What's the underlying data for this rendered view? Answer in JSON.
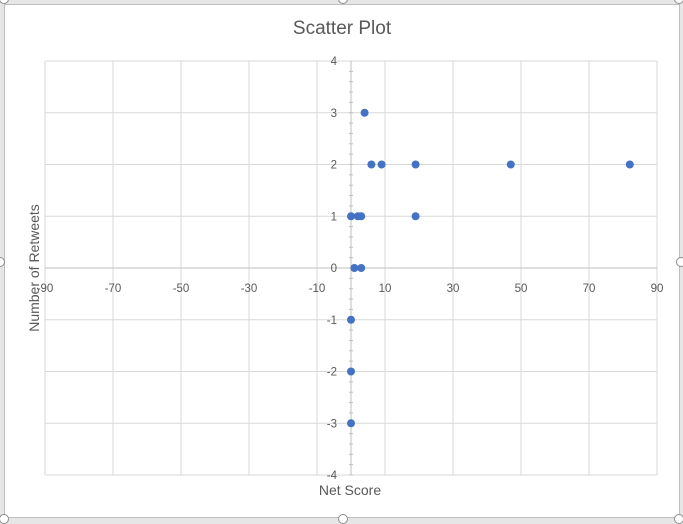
{
  "chart_data": {
    "type": "scatter",
    "title": "Scatter Plot",
    "xlabel": "Net Score",
    "ylabel": "Number of Retweets",
    "xlim": [
      -90,
      90
    ],
    "ylim": [
      -4,
      4
    ],
    "x_ticks": [
      "-90",
      "-70",
      "-50",
      "-30",
      "-10",
      "10",
      "30",
      "50",
      "70",
      "90"
    ],
    "y_ticks": [
      "-4",
      "-3",
      "-2",
      "-1",
      "0",
      "1",
      "2",
      "3",
      "4"
    ],
    "grid": true,
    "legend": "none",
    "marker_color": "#4472C4",
    "points": [
      {
        "x": 4,
        "y": 3
      },
      {
        "x": 6,
        "y": 2
      },
      {
        "x": 9,
        "y": 2
      },
      {
        "x": 19,
        "y": 2
      },
      {
        "x": 47,
        "y": 2
      },
      {
        "x": 82,
        "y": 2
      },
      {
        "x": 0,
        "y": 1
      },
      {
        "x": 2,
        "y": 1
      },
      {
        "x": 3,
        "y": 1
      },
      {
        "x": 19,
        "y": 1
      },
      {
        "x": 1,
        "y": 0
      },
      {
        "x": 3,
        "y": 0
      },
      {
        "x": 0,
        "y": -1
      },
      {
        "x": 0,
        "y": -2
      },
      {
        "x": 0,
        "y": -3
      }
    ]
  }
}
